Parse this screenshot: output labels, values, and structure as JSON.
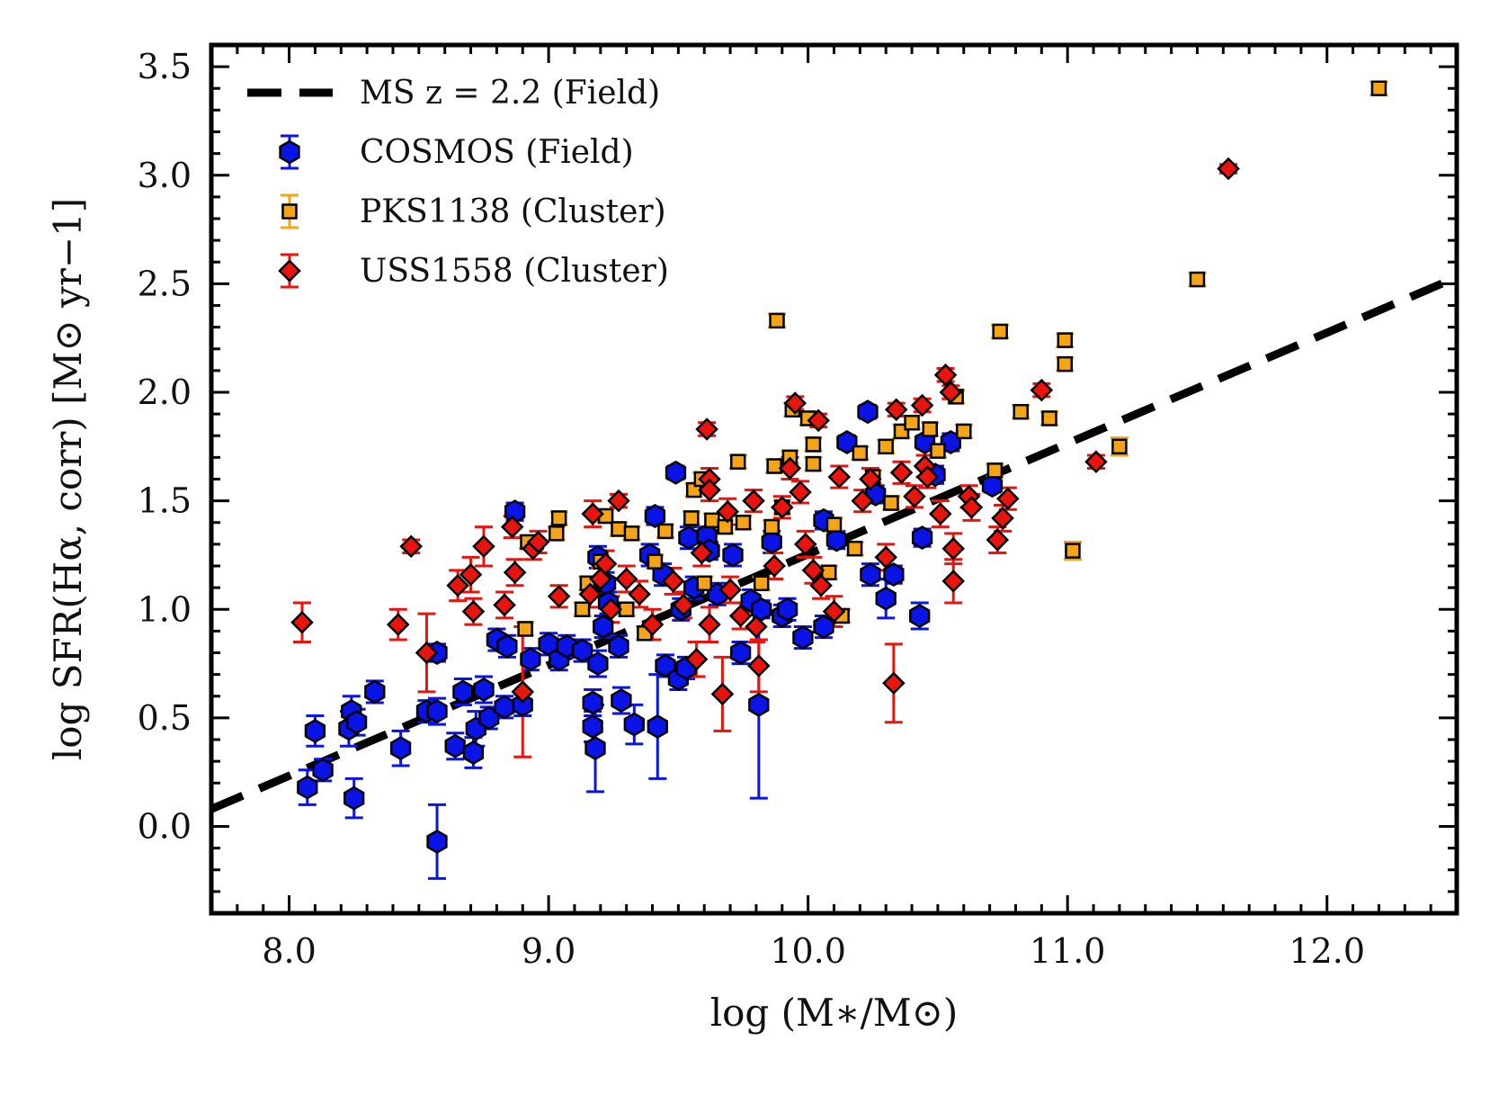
{
  "chart_data": {
    "type": "scatter",
    "title": "",
    "xlabel": "log (M∗/M⊙)",
    "ylabel": "log SFR(Hα, corr) [M⊙ yr−1]",
    "xlim": [
      7.7,
      12.5
    ],
    "ylim": [
      -0.4,
      3.6
    ],
    "xticks": [
      "8.0",
      "9.0",
      "10.0",
      "11.0",
      "12.0"
    ],
    "yticks": [
      "0.0",
      "0.5",
      "1.0",
      "1.5",
      "2.0",
      "2.5",
      "3.0",
      "3.5"
    ],
    "grid": false,
    "legend_position": "top-left",
    "ms_line": {
      "name": "MS z = 2.2 (Field)",
      "color": "#000000",
      "style": "dashed",
      "points": [
        [
          7.7,
          0.08
        ],
        [
          12.5,
          2.53
        ]
      ]
    },
    "series": [
      {
        "name": "COSMOS (Field)",
        "marker": "hexagon",
        "color": "#0a14e6",
        "points": [
          [
            8.07,
            0.18,
            0.08
          ],
          [
            8.1,
            0.44,
            0.07
          ],
          [
            8.13,
            0.26,
            0.05
          ],
          [
            8.24,
            0.53,
            0.07
          ],
          [
            8.23,
            0.45,
            0.08
          ],
          [
            8.25,
            0.13,
            0.09
          ],
          [
            8.26,
            0.48,
            0.06
          ],
          [
            8.33,
            0.62,
            0.05
          ],
          [
            8.43,
            0.36,
            0.08
          ],
          [
            8.53,
            0.53,
            0.05
          ],
          [
            8.57,
            0.53,
            0.06
          ],
          [
            8.57,
            0.8,
            0.04
          ],
          [
            8.57,
            -0.07,
            0.17
          ],
          [
            8.64,
            0.37,
            0.06
          ],
          [
            8.67,
            0.62,
            0.06
          ],
          [
            8.71,
            0.34,
            0.07
          ],
          [
            8.72,
            0.45,
            0.08
          ],
          [
            8.75,
            0.63,
            0.06
          ],
          [
            8.77,
            0.5,
            0.05
          ],
          [
            8.8,
            0.86,
            0.05
          ],
          [
            8.83,
            0.55,
            0.05
          ],
          [
            8.84,
            0.83,
            0.05
          ],
          [
            8.87,
            1.45,
            0.04
          ],
          [
            8.9,
            0.56,
            0.05
          ],
          [
            8.93,
            0.77,
            0.05
          ],
          [
            9.0,
            0.84,
            0.05
          ],
          [
            9.04,
            0.77,
            0.05
          ],
          [
            9.07,
            0.83,
            0.05
          ],
          [
            9.13,
            0.81,
            0.05
          ],
          [
            9.17,
            0.57,
            0.06
          ],
          [
            9.17,
            0.46,
            0.07
          ],
          [
            9.18,
            0.36,
            0.2
          ],
          [
            9.19,
            0.75,
            0.06
          ],
          [
            9.19,
            1.24,
            0.05
          ],
          [
            9.21,
            0.92,
            0.05
          ],
          [
            9.22,
            1.12,
            0.05
          ],
          [
            9.23,
            1.03,
            0.05
          ],
          [
            9.27,
            0.83,
            0.05
          ],
          [
            9.28,
            0.58,
            0.06
          ],
          [
            9.33,
            0.47,
            0.09
          ],
          [
            9.39,
            1.25,
            0.05
          ],
          [
            9.41,
            1.43,
            0.04
          ],
          [
            9.42,
            0.46,
            0.24
          ],
          [
            9.44,
            1.16,
            0.05
          ],
          [
            9.45,
            0.74,
            0.05
          ],
          [
            9.49,
            1.63,
            0.03
          ],
          [
            9.5,
            0.68,
            0.05
          ],
          [
            9.51,
            1.0,
            0.05
          ],
          [
            9.53,
            0.73,
            0.05
          ],
          [
            9.54,
            1.33,
            0.05
          ],
          [
            9.56,
            1.1,
            0.05
          ],
          [
            9.61,
            1.34,
            0.04
          ],
          [
            9.62,
            1.27,
            0.04
          ],
          [
            9.65,
            1.07,
            0.05
          ],
          [
            9.71,
            1.25,
            0.05
          ],
          [
            9.74,
            0.8,
            0.05
          ],
          [
            9.78,
            1.04,
            0.05
          ],
          [
            9.81,
            0.56,
            0.43
          ],
          [
            9.82,
            1.0,
            0.04
          ],
          [
            9.86,
            1.31,
            0.05
          ],
          [
            9.9,
            0.97,
            0.05
          ],
          [
            9.92,
            1.0,
            0.05
          ],
          [
            9.98,
            0.87,
            0.05
          ],
          [
            10.06,
            1.41,
            0.04
          ],
          [
            10.06,
            0.92,
            0.05
          ],
          [
            10.11,
            1.32,
            0.04
          ],
          [
            10.15,
            1.77,
            0.03
          ],
          [
            10.23,
            1.91,
            0.03
          ],
          [
            10.24,
            1.16,
            0.05
          ],
          [
            10.26,
            1.53,
            0.04
          ],
          [
            10.3,
            1.05,
            0.09
          ],
          [
            10.33,
            1.16,
            0.04
          ],
          [
            10.43,
            0.97,
            0.06
          ],
          [
            10.44,
            1.33,
            0.04
          ],
          [
            10.45,
            1.77,
            0.03
          ],
          [
            10.49,
            1.62,
            0.04
          ],
          [
            10.55,
            1.77,
            0.04
          ],
          [
            10.71,
            1.57,
            0.03
          ]
        ]
      },
      {
        "name": "PKS1138 (Cluster)",
        "marker": "square",
        "color": "#f5a416",
        "points": [
          [
            8.91,
            0.91,
            0.03
          ],
          [
            8.92,
            1.31,
            0.03
          ],
          [
            9.04,
            1.42,
            0.03
          ],
          [
            9.03,
            1.35,
            0.03
          ],
          [
            9.13,
            1.0,
            0.03
          ],
          [
            9.15,
            1.12,
            0.03
          ],
          [
            9.2,
            1.22,
            0.03
          ],
          [
            9.22,
            1.43,
            0.03
          ],
          [
            9.27,
            1.37,
            0.03
          ],
          [
            9.3,
            1.0,
            0.03
          ],
          [
            9.32,
            1.35,
            0.03
          ],
          [
            9.37,
            0.89,
            0.03
          ],
          [
            9.41,
            1.22,
            0.03
          ],
          [
            9.45,
            1.36,
            0.03
          ],
          [
            9.55,
            1.42,
            0.03
          ],
          [
            9.56,
            1.55,
            0.03
          ],
          [
            9.59,
            1.6,
            0.03
          ],
          [
            9.6,
            1.12,
            0.03
          ],
          [
            9.63,
            1.41,
            0.03
          ],
          [
            9.68,
            1.38,
            0.03
          ],
          [
            9.73,
            1.68,
            0.03
          ],
          [
            9.75,
            1.4,
            0.03
          ],
          [
            9.82,
            1.12,
            0.03
          ],
          [
            9.86,
            1.38,
            0.03
          ],
          [
            9.87,
            1.66,
            0.03
          ],
          [
            9.88,
            2.33,
            0.03
          ],
          [
            9.9,
            1.47,
            0.03
          ],
          [
            9.93,
            1.7,
            0.03
          ],
          [
            9.94,
            1.92,
            0.03
          ],
          [
            10.0,
            1.88,
            0.03
          ],
          [
            10.02,
            1.67,
            0.03
          ],
          [
            10.02,
            1.76,
            0.03
          ],
          [
            10.08,
            1.17,
            0.03
          ],
          [
            10.1,
            1.39,
            0.03
          ],
          [
            10.13,
            0.97,
            0.03
          ],
          [
            10.18,
            1.28,
            0.03
          ],
          [
            10.2,
            1.72,
            0.03
          ],
          [
            10.25,
            1.61,
            0.03
          ],
          [
            10.3,
            1.75,
            0.03
          ],
          [
            10.32,
            1.49,
            0.03
          ],
          [
            10.36,
            1.82,
            0.03
          ],
          [
            10.4,
            1.86,
            0.03
          ],
          [
            10.47,
            1.83,
            0.03
          ],
          [
            10.5,
            1.73,
            0.03
          ],
          [
            10.57,
            1.98,
            0.03
          ],
          [
            10.6,
            1.82,
            0.03
          ],
          [
            10.72,
            1.64,
            0.03
          ],
          [
            10.74,
            2.28,
            0.03
          ],
          [
            10.82,
            1.91,
            0.03
          ],
          [
            10.93,
            1.88,
            0.03
          ],
          [
            10.99,
            2.24,
            0.03
          ],
          [
            10.99,
            2.13,
            0.03
          ],
          [
            11.02,
            1.27,
            0.04
          ],
          [
            11.2,
            1.75,
            0.04
          ],
          [
            11.5,
            2.52,
            0.03
          ],
          [
            12.2,
            3.4,
            0.03
          ]
        ]
      },
      {
        "name": "USS1558 (Cluster)",
        "marker": "diamond",
        "color": "#e8140e",
        "points": [
          [
            8.05,
            0.94,
            0.09
          ],
          [
            8.42,
            0.93,
            0.07
          ],
          [
            8.47,
            1.29,
            0.03
          ],
          [
            8.53,
            0.8,
            0.18
          ],
          [
            8.65,
            1.11,
            0.07
          ],
          [
            8.7,
            1.16,
            0.08
          ],
          [
            8.71,
            0.99,
            0.06
          ],
          [
            8.75,
            1.29,
            0.09
          ],
          [
            8.83,
            1.02,
            0.06
          ],
          [
            8.86,
            1.38,
            0.05
          ],
          [
            8.87,
            1.17,
            0.06
          ],
          [
            8.9,
            0.62,
            0.3
          ],
          [
            8.94,
            1.28,
            0.05
          ],
          [
            8.96,
            1.31,
            0.05
          ],
          [
            9.04,
            1.06,
            0.05
          ],
          [
            9.16,
            1.07,
            0.06
          ],
          [
            9.17,
            1.44,
            0.06
          ],
          [
            9.2,
            1.14,
            0.06
          ],
          [
            9.22,
            1.21,
            0.06
          ],
          [
            9.24,
            1.0,
            0.06
          ],
          [
            9.27,
            1.5,
            0.03
          ],
          [
            9.3,
            1.14,
            0.06
          ],
          [
            9.35,
            1.07,
            0.06
          ],
          [
            9.4,
            0.93,
            0.07
          ],
          [
            9.48,
            1.13,
            0.06
          ],
          [
            9.52,
            1.02,
            0.06
          ],
          [
            9.57,
            0.77,
            0.08
          ],
          [
            9.59,
            1.26,
            0.06
          ],
          [
            9.61,
            1.83,
            0.03
          ],
          [
            9.62,
            1.6,
            0.05
          ],
          [
            9.62,
            1.55,
            0.05
          ],
          [
            9.62,
            0.93,
            0.08
          ],
          [
            9.67,
            0.61,
            0.17
          ],
          [
            9.69,
            1.45,
            0.06
          ],
          [
            9.7,
            1.09,
            0.06
          ],
          [
            9.74,
            0.97,
            0.06
          ],
          [
            9.79,
            1.5,
            0.05
          ],
          [
            9.8,
            0.92,
            0.07
          ],
          [
            9.81,
            0.74,
            0.12
          ],
          [
            9.87,
            1.2,
            0.06
          ],
          [
            9.9,
            1.47,
            0.05
          ],
          [
            9.93,
            1.65,
            0.05
          ],
          [
            9.95,
            1.95,
            0.03
          ],
          [
            9.97,
            1.54,
            0.05
          ],
          [
            9.99,
            1.3,
            0.06
          ],
          [
            10.02,
            1.18,
            0.06
          ],
          [
            10.04,
            1.87,
            0.03
          ],
          [
            10.05,
            1.11,
            0.06
          ],
          [
            10.1,
            0.99,
            0.07
          ],
          [
            10.12,
            1.61,
            0.05
          ],
          [
            10.21,
            1.5,
            0.05
          ],
          [
            10.24,
            1.6,
            0.05
          ],
          [
            10.3,
            1.24,
            0.06
          ],
          [
            10.33,
            0.66,
            0.18
          ],
          [
            10.34,
            1.92,
            0.03
          ],
          [
            10.36,
            1.63,
            0.05
          ],
          [
            10.41,
            1.52,
            0.05
          ],
          [
            10.44,
            1.94,
            0.03
          ],
          [
            10.45,
            1.66,
            0.05
          ],
          [
            10.46,
            1.61,
            0.05
          ],
          [
            10.51,
            1.44,
            0.06
          ],
          [
            10.53,
            2.08,
            0.03
          ],
          [
            10.55,
            2.0,
            0.03
          ],
          [
            10.56,
            1.13,
            0.1
          ],
          [
            10.56,
            1.28,
            0.07
          ],
          [
            10.62,
            1.52,
            0.05
          ],
          [
            10.63,
            1.47,
            0.06
          ],
          [
            10.73,
            1.32,
            0.06
          ],
          [
            10.75,
            1.42,
            0.06
          ],
          [
            10.77,
            1.51,
            0.05
          ],
          [
            10.9,
            2.01,
            0.03
          ],
          [
            11.11,
            1.68,
            0.03
          ],
          [
            11.62,
            3.03,
            0.02
          ]
        ]
      }
    ]
  }
}
